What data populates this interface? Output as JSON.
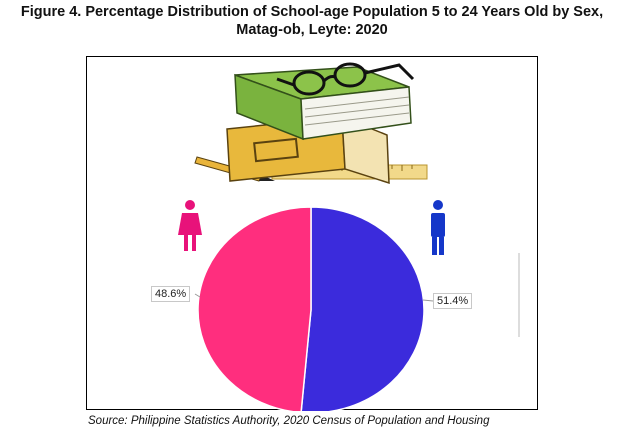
{
  "figure": {
    "title_line1": "Figure 4. Percentage Distribution of School-age Population 5 to 24 Years Old by Sex,",
    "title_line2": "Matag-ob, Leyte: 2020",
    "source": "Source: Philippine Statistics Authority, 2020 Census of Population and Housing"
  },
  "icons": {
    "female": "female-person-icon",
    "male": "male-person-icon",
    "decoration": "books-with-glasses-icon"
  },
  "colors": {
    "female": "#FF2E7E",
    "male": "#3B2BDC",
    "female_icon": "#E8127A",
    "male_icon": "#1537C9"
  },
  "chart_data": {
    "type": "pie",
    "categories": [
      "Female",
      "Male"
    ],
    "values": [
      48.6,
      51.4
    ],
    "labels": [
      "48.6%",
      "51.4%"
    ],
    "colors": [
      "#FF2E7E",
      "#3B2BDC"
    ]
  }
}
